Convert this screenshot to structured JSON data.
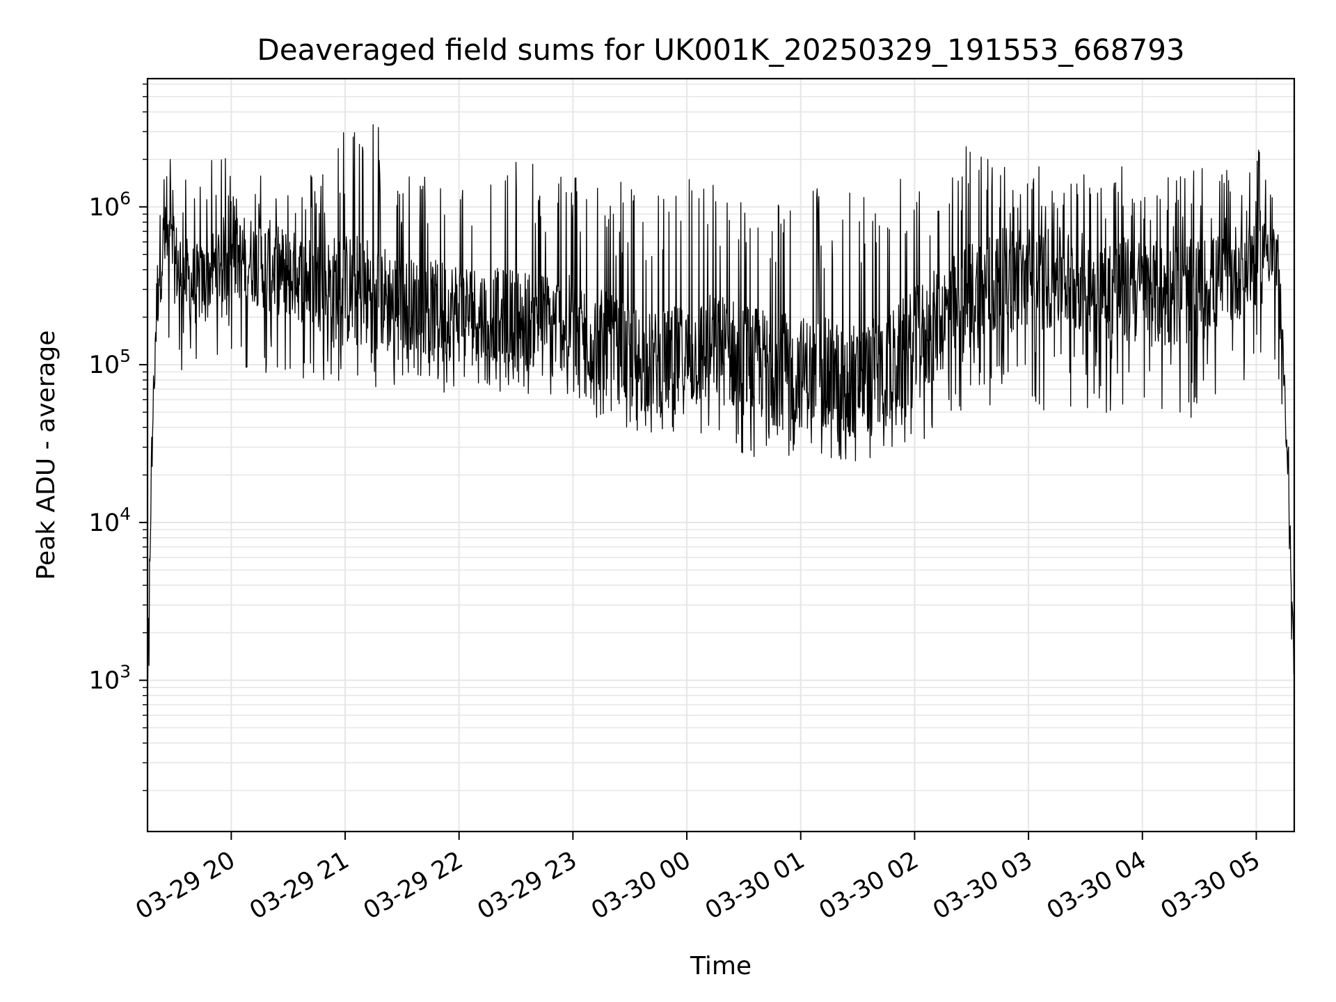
{
  "chart_data": {
    "type": "line",
    "title": "Deaveraged field sums for UK001K_20250329_191553_668793",
    "xlabel": "Time",
    "ylabel": "Peak ADU - average",
    "yscale": "log",
    "ylim": [
      110,
      6500000
    ],
    "xlim": [
      "2025-03-29 19:15:53",
      "2025-03-30 05:20:00"
    ],
    "grid": true,
    "line_color": "#000000",
    "grid_color": "#e6e6e6",
    "x_ticks": [
      {
        "value": "2025-03-29 20:00",
        "label": "03-29 20"
      },
      {
        "value": "2025-03-29 21:00",
        "label": "03-29 21"
      },
      {
        "value": "2025-03-29 22:00",
        "label": "03-29 22"
      },
      {
        "value": "2025-03-29 23:00",
        "label": "03-29 23"
      },
      {
        "value": "2025-03-30 00:00",
        "label": "03-30 00"
      },
      {
        "value": "2025-03-30 01:00",
        "label": "03-30 01"
      },
      {
        "value": "2025-03-30 02:00",
        "label": "03-30 02"
      },
      {
        "value": "2025-03-30 03:00",
        "label": "03-30 03"
      },
      {
        "value": "2025-03-30 04:00",
        "label": "03-30 04"
      },
      {
        "value": "2025-03-30 05:00",
        "label": "03-30 05"
      }
    ],
    "y_ticks": [
      {
        "value": 1000,
        "base": "10",
        "exp": "3"
      },
      {
        "value": 10000,
        "base": "10",
        "exp": "4"
      },
      {
        "value": 100000,
        "base": "10",
        "exp": "5"
      },
      {
        "value": 1000000,
        "base": "10",
        "exp": "6"
      }
    ],
    "series": [
      {
        "x": [
          "2025-03-29 19:16",
          "2025-03-29 19:18",
          "2025-03-29 19:20",
          "2025-03-29 19:22",
          "2025-03-29 19:25",
          "2025-03-29 19:28",
          "2025-03-29 19:32",
          "2025-03-29 19:36",
          "2025-03-29 19:40",
          "2025-03-29 19:45",
          "2025-03-29 19:50",
          "2025-03-29 19:55",
          "2025-03-29 20:00",
          "2025-03-29 20:10",
          "2025-03-29 20:20",
          "2025-03-29 20:30",
          "2025-03-29 20:45",
          "2025-03-29 21:00",
          "2025-03-29 21:15",
          "2025-03-29 21:30",
          "2025-03-29 21:45",
          "2025-03-29 22:00",
          "2025-03-29 22:15",
          "2025-03-29 22:30",
          "2025-03-29 22:45",
          "2025-03-29 23:00",
          "2025-03-29 23:15",
          "2025-03-29 23:30",
          "2025-03-29 23:45",
          "2025-03-30 00:00",
          "2025-03-30 00:15",
          "2025-03-30 00:30",
          "2025-03-30 00:45",
          "2025-03-30 01:00",
          "2025-03-30 01:15",
          "2025-03-30 01:30",
          "2025-03-30 01:45",
          "2025-03-30 02:00",
          "2025-03-30 02:15",
          "2025-03-30 02:30",
          "2025-03-30 02:45",
          "2025-03-30 03:00",
          "2025-03-30 03:15",
          "2025-03-30 03:30",
          "2025-03-30 03:45",
          "2025-03-30 04:00",
          "2025-03-30 04:15",
          "2025-03-30 04:30",
          "2025-03-30 04:45",
          "2025-03-30 05:00",
          "2025-03-30 05:05",
          "2025-03-30 05:10",
          "2025-03-30 05:14",
          "2025-03-30 05:17",
          "2025-03-30 05:20"
        ],
        "median": [
          1000,
          25000,
          150000,
          450000,
          600000,
          500000,
          420000,
          350000,
          320000,
          330000,
          400000,
          450000,
          480000,
          470000,
          420000,
          380000,
          330000,
          300000,
          280000,
          250000,
          230000,
          220000,
          210000,
          200000,
          190000,
          180000,
          140000,
          110000,
          100000,
          110000,
          130000,
          110000,
          95000,
          90000,
          85000,
          80000,
          90000,
          130000,
          200000,
          280000,
          330000,
          360000,
          350000,
          330000,
          300000,
          290000,
          270000,
          300000,
          350000,
          500000,
          600000,
          450000,
          100000,
          20000,
          1000
        ],
        "spike_max": [
          3000,
          80000,
          800000,
          2600000,
          1800000,
          2100000,
          1700000,
          1600000,
          1800000,
          1700000,
          2000000,
          2600000,
          1800000,
          1700000,
          1900000,
          1600000,
          1700000,
          3500000,
          4000000,
          1700000,
          1600000,
          2400000,
          1700000,
          2200000,
          1700000,
          1800000,
          1500000,
          1500000,
          1500000,
          1800000,
          1500000,
          1400000,
          1400000,
          1400000,
          1400000,
          1300000,
          1400000,
          1700000,
          2000000,
          2600000,
          2000000,
          1800000,
          1900000,
          1700000,
          2000000,
          1800000,
          1700000,
          1800000,
          1700000,
          2500000,
          1800000,
          1300000,
          200000,
          30000,
          1200
        ],
        "dip_min": [
          300,
          15000,
          80000,
          80000,
          120000,
          100000,
          90000,
          80000,
          100000,
          110000,
          120000,
          110000,
          100000,
          80000,
          75000,
          70000,
          70000,
          65000,
          65000,
          70000,
          60000,
          60000,
          70000,
          65000,
          55000,
          60000,
          40000,
          37000,
          37000,
          38000,
          30000,
          26000,
          26000,
          27000,
          25000,
          24000,
          26000,
          27000,
          45000,
          50000,
          45000,
          45000,
          50000,
          48000,
          45000,
          45000,
          38000,
          50000,
          60000,
          60000,
          200000,
          60000,
          30000,
          10000,
          300
        ]
      }
    ]
  }
}
